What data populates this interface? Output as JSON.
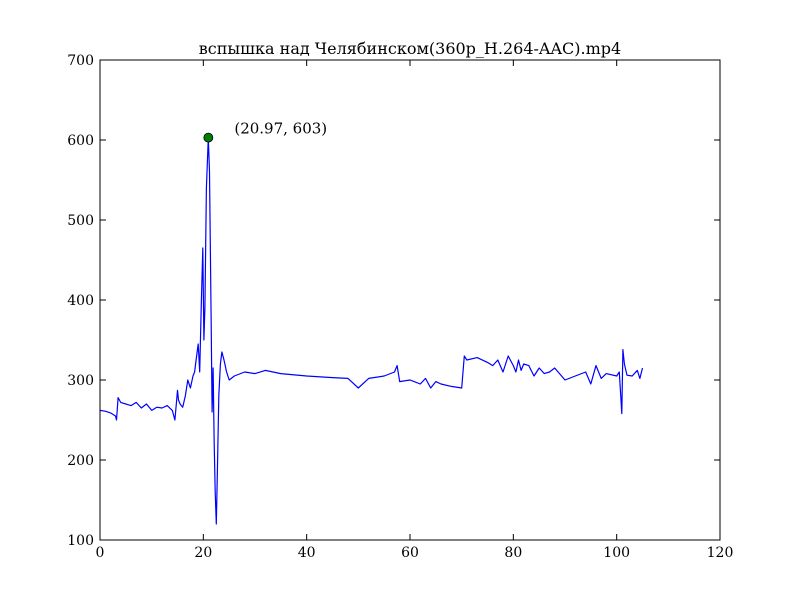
{
  "chart_data": {
    "type": "line",
    "title": "вспышка над Челябинском(360p_H.264-AAC).mp4",
    "xlabel": "",
    "ylabel": "",
    "xlim": [
      0,
      120
    ],
    "ylim": [
      100,
      700
    ],
    "xticks": [
      0,
      20,
      40,
      60,
      80,
      100,
      120
    ],
    "yticks": [
      100,
      200,
      300,
      400,
      500,
      600,
      700
    ],
    "grid": false,
    "colors": {
      "line": "#0000ff",
      "marker": "#008000",
      "axes": "#000000"
    },
    "series": [
      {
        "x": [
          0,
          1,
          2,
          3,
          3.2,
          3.5,
          4,
          5,
          6,
          7,
          8,
          9,
          10,
          11,
          12,
          13,
          14,
          14.5,
          15,
          15.2,
          15.5,
          16,
          16.5,
          17,
          17.5,
          18,
          18.3,
          18.6,
          19,
          19.3,
          19.6,
          19.9,
          20.1,
          20.3,
          20.6,
          20.97,
          21.2,
          21.5,
          21.7,
          21.9,
          22.1,
          22.3,
          22.5,
          22.7,
          23,
          23.3,
          23.6,
          24,
          24.5,
          25,
          26,
          28,
          30,
          32,
          35,
          40,
          45,
          48,
          50,
          52,
          55,
          57,
          57.5,
          58,
          60,
          62,
          63,
          64,
          65,
          66,
          68,
          70,
          70.5,
          71,
          73,
          75,
          76,
          77,
          78,
          79,
          80,
          80.5,
          81,
          81.5,
          82,
          83,
          84,
          85,
          86,
          87,
          88,
          90,
          92,
          94,
          95,
          96,
          97,
          98,
          100,
          100.5,
          101,
          101.2,
          101.5,
          102,
          103,
          104,
          104.5,
          105
        ],
        "values": [
          262,
          261,
          259,
          255,
          250,
          278,
          272,
          270,
          268,
          272,
          265,
          270,
          262,
          266,
          265,
          268,
          262,
          250,
          287,
          275,
          270,
          266,
          280,
          300,
          290,
          305,
          310,
          325,
          345,
          310,
          395,
          465,
          350,
          390,
          540,
          603,
          560,
          380,
          260,
          315,
          220,
          160,
          120,
          180,
          280,
          320,
          335,
          325,
          310,
          300,
          305,
          310,
          308,
          312,
          308,
          305,
          303,
          302,
          290,
          302,
          305,
          310,
          318,
          298,
          300,
          295,
          302,
          290,
          298,
          295,
          292,
          290,
          330,
          325,
          328,
          322,
          318,
          325,
          310,
          330,
          318,
          310,
          325,
          312,
          320,
          318,
          305,
          315,
          308,
          310,
          315,
          300,
          305,
          310,
          295,
          318,
          302,
          308,
          305,
          310,
          258,
          338,
          320,
          306,
          305,
          312,
          302,
          315
        ]
      }
    ],
    "highlight": {
      "x": 20.97,
      "y": 603,
      "label": "(20.97, 603)"
    }
  }
}
